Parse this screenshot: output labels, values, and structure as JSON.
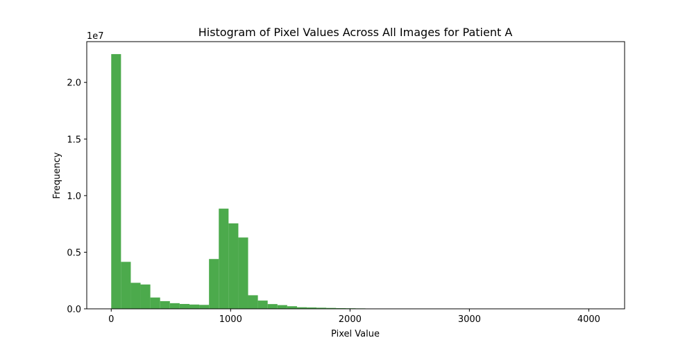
{
  "chart_data": {
    "type": "bar",
    "title": "Histogram of Pixel Values Across All Images for Patient A",
    "xlabel": "Pixel Value",
    "ylabel": "Frequency",
    "y_multiplier_label": "1e7",
    "xlim": [
      -205,
      4300
    ],
    "ylim": [
      0,
      23600000
    ],
    "x_ticks": [
      0,
      1000,
      2000,
      3000,
      4000
    ],
    "x_tick_labels": [
      "0",
      "1000",
      "2000",
      "3000",
      "4000"
    ],
    "y_ticks": [
      0,
      5000000,
      10000000,
      15000000,
      20000000
    ],
    "y_tick_labels": [
      "0.0",
      "0.5",
      "1.0",
      "1.5",
      "2.0"
    ],
    "bin_start": 0,
    "bin_width": 81.9,
    "values": [
      22500000,
      4150000,
      2300000,
      2150000,
      1000000,
      680000,
      500000,
      430000,
      380000,
      350000,
      4400000,
      8850000,
      7550000,
      6300000,
      1200000,
      730000,
      420000,
      330000,
      230000,
      140000,
      120000,
      100000,
      80000,
      60000,
      50000,
      40000,
      30000,
      20000,
      15000,
      12000,
      10000,
      8000,
      6000,
      5000,
      4000,
      3000,
      2000,
      2000,
      1500,
      1000,
      1000,
      800,
      600,
      500,
      400,
      300,
      200,
      200,
      100,
      100
    ],
    "color": "#4caa4c",
    "grid": false,
    "legend": "none"
  }
}
